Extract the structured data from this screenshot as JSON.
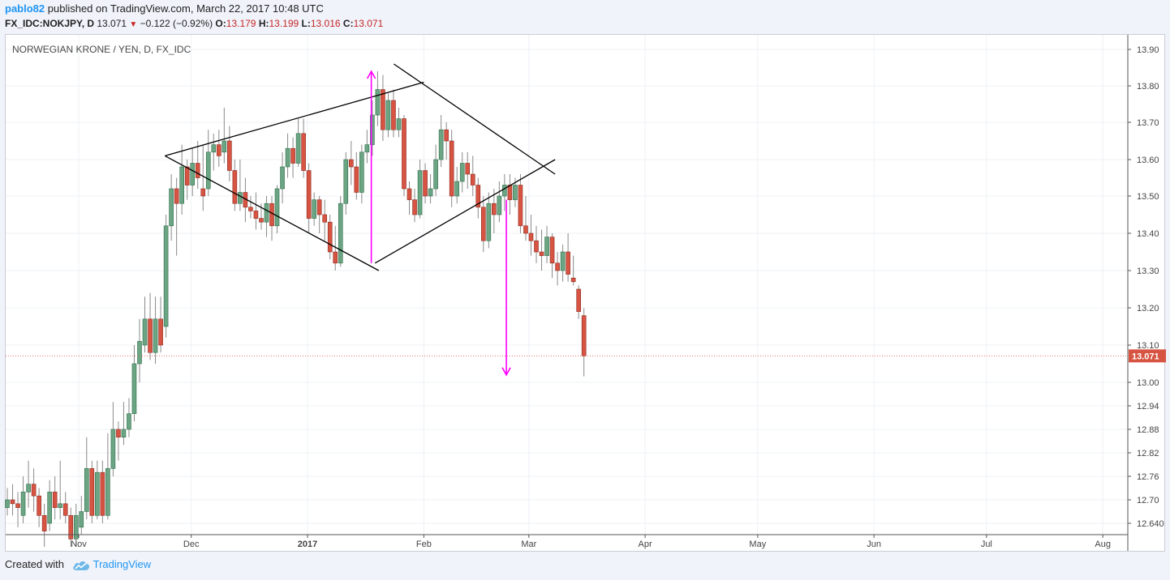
{
  "header": {
    "author": "pablo82",
    "published_text": "published on TradingView.com, March 22, 2017 10:48 UTC",
    "symbol": "FX_IDC:NOKJPY, D",
    "last": "13.071",
    "change": "−0.122 (−0.92%)",
    "o_label": "O:",
    "o_value": "13.179",
    "h_label": "H:",
    "h_value": "13.199",
    "l_label": "L:",
    "l_value": "13.016",
    "c_label": "C:",
    "c_value": "13.071"
  },
  "footer": {
    "created_with": "Created with",
    "brand": "TradingView"
  },
  "colors": {
    "up": "#6ba583",
    "down": "#d75442",
    "wick": "#8a8a8a",
    "arrow": "#ff00ff",
    "price_line": "#e57368",
    "accent": "#2196f3"
  },
  "chart_data": {
    "type": "candlestick",
    "title": "NORWEGIAN KRONE / YEN, D, FX_IDC",
    "current_price_label": "13.071",
    "current_price": 13.071,
    "y_ticks": [
      12.64,
      12.7,
      12.76,
      12.82,
      12.88,
      12.94,
      13.0,
      13.1,
      13.2,
      13.3,
      13.4,
      13.5,
      13.6,
      13.7,
      13.8,
      13.9
    ],
    "y_tick_labels": [
      "12.640",
      "12.70",
      "12.76",
      "12.82",
      "12.88",
      "12.94",
      "13.00",
      "13.10",
      "13.20",
      "13.30",
      "13.40",
      "13.50",
      "13.60",
      "13.70",
      "13.80",
      "13.90"
    ],
    "x_labels": [
      {
        "text": "Nov",
        "date": "2016-11-01",
        "bold": false
      },
      {
        "text": "Dec",
        "date": "2016-12-01",
        "bold": false
      },
      {
        "text": "2017",
        "date": "2017-01-01",
        "bold": true
      },
      {
        "text": "Feb",
        "date": "2017-02-01",
        "bold": false
      },
      {
        "text": "Mar",
        "date": "2017-03-01",
        "bold": false
      },
      {
        "text": "Apr",
        "date": "2017-04-01",
        "bold": false
      },
      {
        "text": "May",
        "date": "2017-05-01",
        "bold": false
      },
      {
        "text": "Jun",
        "date": "2017-06-01",
        "bold": false
      },
      {
        "text": "Jul",
        "date": "2017-07-01",
        "bold": false
      },
      {
        "text": "Aug",
        "date": "2017-08-01",
        "bold": false
      }
    ],
    "candles": [
      [
        12.68,
        12.7,
        12.73,
        12.66
      ],
      [
        12.7,
        12.69,
        12.74,
        12.66
      ],
      [
        12.69,
        12.68,
        12.72,
        12.63
      ],
      [
        12.66,
        12.72,
        12.76,
        12.64
      ],
      [
        12.72,
        12.74,
        12.8,
        12.68
      ],
      [
        12.74,
        12.71,
        12.78,
        12.67
      ],
      [
        12.71,
        12.66,
        12.73,
        12.63
      ],
      [
        12.66,
        12.62,
        12.69,
        12.58
      ],
      [
        12.64,
        12.72,
        12.75,
        12.62
      ],
      [
        12.72,
        12.68,
        12.76,
        12.65
      ],
      [
        12.68,
        12.69,
        12.8,
        12.65
      ],
      [
        12.69,
        12.66,
        12.72,
        12.64
      ],
      [
        12.66,
        12.6,
        12.68,
        12.58
      ],
      [
        12.6,
        12.66,
        12.69,
        12.58
      ],
      [
        12.63,
        12.67,
        12.71,
        12.61
      ],
      [
        12.67,
        12.78,
        12.86,
        12.65
      ],
      [
        12.78,
        12.66,
        12.8,
        12.64
      ],
      [
        12.66,
        12.77,
        12.8,
        12.65
      ],
      [
        12.77,
        12.66,
        12.8,
        12.64
      ],
      [
        12.66,
        12.78,
        12.87,
        12.65
      ],
      [
        12.78,
        12.88,
        12.95,
        12.76
      ],
      [
        12.88,
        12.86,
        12.9,
        12.8
      ],
      [
        12.86,
        12.88,
        12.95,
        12.84
      ],
      [
        12.88,
        12.92,
        12.96,
        12.86
      ],
      [
        12.92,
        13.05,
        13.1,
        12.9
      ],
      [
        13.05,
        13.11,
        13.17,
        13.0
      ],
      [
        13.1,
        13.17,
        13.23,
        13.08
      ],
      [
        13.17,
        13.08,
        13.24,
        13.06
      ],
      [
        13.08,
        13.17,
        13.23,
        13.05
      ],
      [
        13.17,
        13.1,
        13.23,
        13.08
      ],
      [
        13.15,
        13.42,
        13.45,
        13.12
      ],
      [
        13.42,
        13.52,
        13.56,
        13.38
      ],
      [
        13.52,
        13.48,
        13.55,
        13.34
      ],
      [
        13.48,
        13.58,
        13.64,
        13.45
      ],
      [
        13.58,
        13.53,
        13.6,
        13.49
      ],
      [
        13.53,
        13.59,
        13.63,
        13.5
      ],
      [
        13.59,
        13.55,
        13.65,
        13.52
      ],
      [
        13.52,
        13.5,
        13.64,
        13.46
      ],
      [
        13.52,
        13.62,
        13.68,
        13.5
      ],
      [
        13.62,
        13.64,
        13.67,
        13.57
      ],
      [
        13.64,
        13.61,
        13.68,
        13.58
      ],
      [
        13.62,
        13.65,
        13.74,
        13.59
      ],
      [
        13.65,
        13.57,
        13.69,
        13.54
      ],
      [
        13.57,
        13.48,
        13.6,
        13.46
      ],
      [
        13.48,
        13.51,
        13.6,
        13.46
      ],
      [
        13.51,
        13.47,
        13.55,
        13.43
      ],
      [
        13.47,
        13.46,
        13.5,
        13.44
      ],
      [
        13.46,
        13.44,
        13.51,
        13.41
      ],
      [
        13.44,
        13.43,
        13.48,
        13.41
      ],
      [
        13.43,
        13.48,
        13.5,
        13.39
      ],
      [
        13.48,
        13.42,
        13.5,
        13.38
      ],
      [
        13.42,
        13.52,
        13.53,
        13.4
      ],
      [
        13.52,
        13.58,
        13.62,
        13.48
      ],
      [
        13.58,
        13.63,
        13.67,
        13.55
      ],
      [
        13.63,
        13.59,
        13.66,
        13.55
      ],
      [
        13.59,
        13.67,
        13.71,
        13.58
      ],
      [
        13.67,
        13.57,
        13.71,
        13.55
      ],
      [
        13.57,
        13.44,
        13.59,
        13.4
      ],
      [
        13.44,
        13.49,
        13.51,
        13.42
      ],
      [
        13.49,
        13.45,
        13.5,
        13.4
      ],
      [
        13.45,
        13.43,
        13.49,
        13.38
      ],
      [
        13.43,
        13.35,
        13.45,
        13.33
      ],
      [
        13.35,
        13.32,
        13.42,
        13.3
      ],
      [
        13.32,
        13.48,
        13.5,
        13.31
      ],
      [
        13.48,
        13.6,
        13.62,
        13.45
      ],
      [
        13.6,
        13.58,
        13.65,
        13.53
      ],
      [
        13.58,
        13.51,
        13.62,
        13.49
      ],
      [
        13.51,
        13.62,
        13.64,
        13.48
      ],
      [
        13.62,
        13.64,
        13.68,
        13.59
      ],
      [
        13.64,
        13.72,
        13.76,
        13.61
      ],
      [
        13.72,
        13.79,
        13.84,
        13.69
      ],
      [
        13.79,
        13.68,
        13.83,
        13.65
      ],
      [
        13.68,
        13.76,
        13.78,
        13.66
      ],
      [
        13.76,
        13.68,
        13.79,
        13.66
      ],
      [
        13.68,
        13.71,
        13.74,
        13.66
      ],
      [
        13.71,
        13.52,
        13.72,
        13.5
      ],
      [
        13.52,
        13.49,
        13.54,
        13.45
      ],
      [
        13.49,
        13.45,
        13.52,
        13.43
      ],
      [
        13.45,
        13.57,
        13.6,
        13.44
      ],
      [
        13.57,
        13.5,
        13.59,
        13.48
      ],
      [
        13.5,
        13.52,
        13.56,
        13.48
      ],
      [
        13.52,
        13.6,
        13.64,
        13.5
      ],
      [
        13.6,
        13.68,
        13.72,
        13.58
      ],
      [
        13.68,
        13.65,
        13.7,
        13.6
      ],
      [
        13.65,
        13.5,
        13.68,
        13.47
      ],
      [
        13.5,
        13.54,
        13.58,
        13.48
      ],
      [
        13.54,
        13.59,
        13.62,
        13.51
      ],
      [
        13.59,
        13.56,
        13.62,
        13.52
      ],
      [
        13.56,
        13.53,
        13.61,
        13.5
      ],
      [
        13.53,
        13.47,
        13.55,
        13.44
      ],
      [
        13.47,
        13.38,
        13.5,
        13.35
      ],
      [
        13.38,
        13.48,
        13.51,
        13.36
      ],
      [
        13.48,
        13.45,
        13.52,
        13.4
      ],
      [
        13.45,
        13.5,
        13.54,
        13.43
      ],
      [
        13.5,
        13.53,
        13.56,
        13.46
      ],
      [
        13.53,
        13.49,
        13.56,
        13.45
      ],
      [
        13.49,
        13.53,
        13.55,
        13.47
      ],
      [
        13.53,
        13.42,
        13.56,
        13.4
      ],
      [
        13.42,
        13.4,
        13.5,
        13.38
      ],
      [
        13.4,
        13.38,
        13.45,
        13.34
      ],
      [
        13.38,
        13.35,
        13.42,
        13.32
      ],
      [
        13.35,
        13.34,
        13.41,
        13.3
      ],
      [
        13.34,
        13.39,
        13.42,
        13.32
      ],
      [
        13.39,
        13.32,
        13.4,
        13.28
      ],
      [
        13.32,
        13.3,
        13.35,
        13.26
      ],
      [
        13.3,
        13.35,
        13.37,
        13.27
      ],
      [
        13.35,
        13.29,
        13.4,
        13.27
      ],
      [
        13.28,
        13.27,
        13.34,
        13.26
      ],
      [
        13.25,
        13.19,
        13.26,
        13.17
      ],
      [
        13.179,
        13.071,
        13.199,
        13.016
      ]
    ],
    "drawings": {
      "pattern": "diamond",
      "lines": [
        {
          "from": [
            "2016-11-24",
            13.61
          ],
          "to": [
            "2017-02-01",
            13.81
          ]
        },
        {
          "from": [
            "2016-11-24",
            13.61
          ],
          "to": [
            "2017-01-20",
            13.3
          ]
        },
        {
          "from": [
            "2017-01-19",
            13.32
          ],
          "to": [
            "2017-03-08",
            13.6
          ]
        },
        {
          "from": [
            "2017-01-24",
            13.86
          ],
          "to": [
            "2017-03-08",
            13.56
          ]
        }
      ],
      "arrows": [
        {
          "date": "2017-01-18",
          "from": 13.32,
          "to": 13.84
        },
        {
          "date": "2017-02-23",
          "from": 13.49,
          "to": 13.02
        }
      ]
    }
  }
}
